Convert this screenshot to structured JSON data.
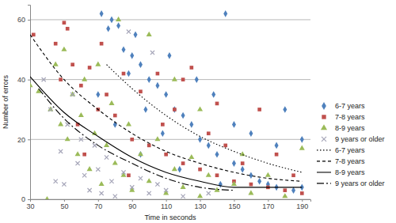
{
  "chart_data": {
    "type": "scatter",
    "x_label": "Time in seconds",
    "y_label": "Number of errors",
    "xlim": [
      30,
      195
    ],
    "xticks": [
      30,
      50,
      70,
      90,
      110,
      130,
      150,
      170,
      190
    ],
    "ylim": [
      0,
      65
    ],
    "yticks": [
      0,
      20,
      40,
      60
    ],
    "grid": true,
    "legend": "right",
    "series": [
      {
        "name": "6-7 years",
        "type": "scatter",
        "marker": "diamond",
        "color": "#4f81bd",
        "x": [
          72,
          78,
          82,
          76,
          85,
          90,
          95,
          88,
          100,
          105,
          110,
          98,
          115,
          120,
          125,
          108,
          130,
          135,
          140,
          145,
          150,
          155,
          160,
          165,
          170,
          175,
          180,
          185,
          190,
          95,
          118,
          128,
          138,
          112,
          80,
          70,
          92,
          160,
          175,
          142,
          150,
          190
        ],
        "values": [
          62,
          60,
          58,
          57,
          50,
          48,
          45,
          42,
          40,
          38,
          35,
          30,
          30,
          28,
          25,
          22,
          20,
          18,
          15,
          62,
          12,
          10,
          8,
          6,
          5,
          4,
          30,
          3,
          4,
          15,
          10,
          40,
          35,
          48,
          25,
          35,
          55,
          22,
          18,
          5,
          25,
          20
        ]
      },
      {
        "name": "7-8 years",
        "type": "scatter",
        "marker": "square",
        "color": "#c0504d",
        "x": [
          32,
          50,
          52,
          45,
          55,
          48,
          60,
          65,
          70,
          75,
          58,
          80,
          85,
          90,
          95,
          100,
          105,
          110,
          115,
          120,
          125,
          130,
          135,
          140,
          145,
          150,
          155,
          160,
          165,
          170,
          175,
          180,
          185,
          190,
          62,
          88,
          108,
          72,
          120,
          140
        ],
        "values": [
          55,
          59,
          57,
          52,
          45,
          40,
          38,
          44,
          30,
          35,
          25,
          28,
          42,
          20,
          36,
          18,
          42,
          15,
          30,
          12,
          44,
          10,
          22,
          8,
          18,
          6,
          12,
          5,
          30,
          4,
          15,
          3,
          8,
          2,
          15,
          8,
          25,
          52,
          40,
          32
        ]
      },
      {
        "name": "8-9 years",
        "type": "scatter",
        "marker": "triangle",
        "color": "#9bbb59",
        "x": [
          30,
          35,
          40,
          42,
          45,
          48,
          50,
          52,
          55,
          58,
          60,
          62,
          65,
          68,
          70,
          72,
          75,
          78,
          80,
          82,
          85,
          88,
          90,
          95,
          100,
          105,
          110,
          115,
          120,
          125,
          130,
          135,
          140,
          150,
          160,
          170,
          180,
          190,
          100,
          115,
          130,
          155
        ],
        "values": [
          38,
          36,
          0,
          30,
          45,
          25,
          50,
          20,
          35,
          15,
          28,
          40,
          10,
          22,
          45,
          5,
          18,
          32,
          12,
          60,
          8,
          25,
          3,
          15,
          6,
          20,
          2,
          10,
          4,
          14,
          1,
          8,
          3,
          5,
          2,
          8,
          1,
          17,
          55,
          40,
          30,
          15
        ]
      },
      {
        "name": "9 years or older",
        "type": "scatter",
        "marker": "x",
        "color": "#a5a5b8",
        "x": [
          38,
          42,
          45,
          48,
          50,
          52,
          55,
          58,
          60,
          62,
          65,
          68,
          70,
          72,
          75,
          78,
          80,
          85,
          88,
          90,
          95,
          100,
          102,
          105,
          110,
          120,
          135
        ],
        "values": [
          40,
          30,
          6,
          16,
          5,
          25,
          35,
          12,
          20,
          8,
          3,
          18,
          10,
          2,
          14,
          6,
          1,
          9,
          56,
          4,
          7,
          2,
          49,
          5,
          3,
          1,
          2
        ]
      },
      {
        "name": "6-7 years",
        "type": "line",
        "line_style": "dotted",
        "color": "#000000",
        "x": [
          75,
          90,
          110,
          130,
          150,
          170,
          190
        ],
        "values": [
          45,
          37,
          28,
          21,
          16,
          12,
          9
        ]
      },
      {
        "name": "7-8 years",
        "type": "line",
        "line_style": "dashed",
        "color": "#000000",
        "x": [
          30,
          50,
          70,
          90,
          110,
          130,
          150,
          170,
          190
        ],
        "values": [
          55,
          40,
          30,
          22,
          16,
          12,
          9,
          7,
          6
        ]
      },
      {
        "name": "8-9 years",
        "type": "line",
        "line_style": "solid",
        "color": "#000000",
        "x": [
          30,
          50,
          70,
          90,
          110,
          130,
          150,
          170,
          190
        ],
        "values": [
          41,
          29,
          21,
          14,
          9,
          6,
          4,
          4,
          4
        ]
      },
      {
        "name": "9 years or older",
        "type": "line",
        "line_style": "dashdot",
        "color": "#000000",
        "x": [
          35,
          50,
          70,
          90,
          110,
          130,
          150
        ],
        "values": [
          37,
          27,
          18,
          12,
          7,
          4,
          3
        ]
      }
    ]
  }
}
